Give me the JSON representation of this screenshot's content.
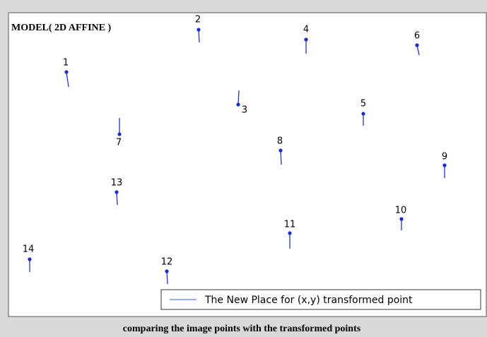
{
  "title": "MODEL( 2D AFFINE )",
  "legend": "The New Place for (x,y) transformed point",
  "caption": "comparing the image points with the transformed points",
  "points": [
    "1",
    "2",
    "3",
    "4",
    "5",
    "6",
    "7",
    "8",
    "9",
    "10",
    "11",
    "12",
    "13",
    "14"
  ]
}
